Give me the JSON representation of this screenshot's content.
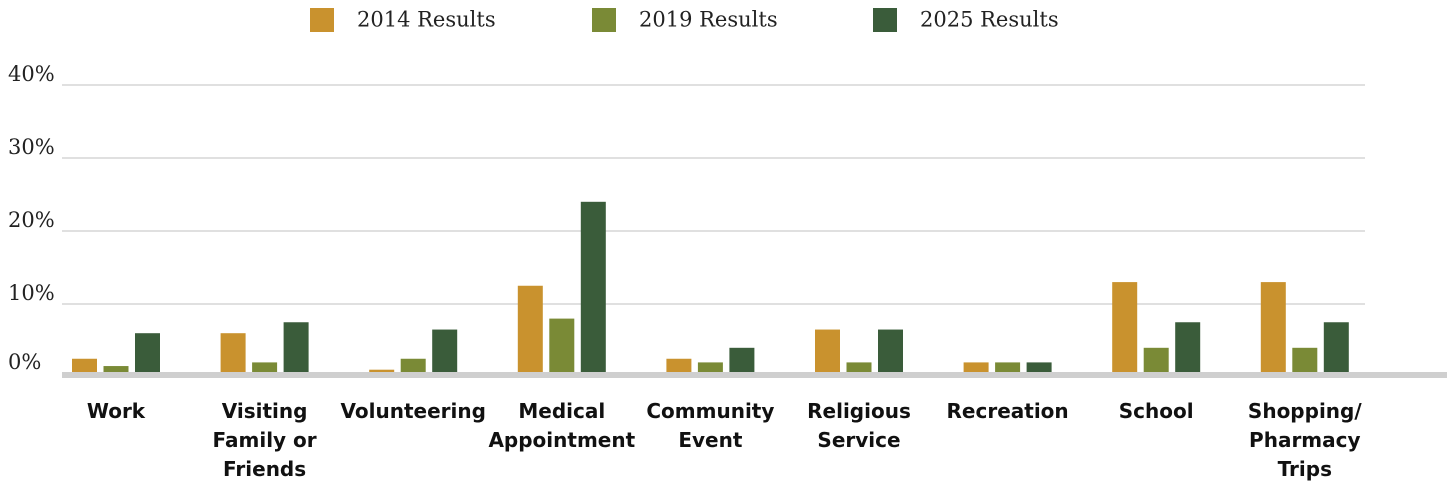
{
  "chart_data": {
    "type": "bar",
    "categories": [
      "Work",
      "Visiting\nFamily or\nFriends",
      "Volunteering",
      "Medical\nAppointment",
      "Community\nEvent",
      "Religious\nService",
      "Recreation",
      "School",
      "Shopping/\nPharmacy\nTrips"
    ],
    "series": [
      {
        "name": "2014 Results",
        "color": "#c9922e",
        "values": [
          2.5,
          6,
          1,
          12.5,
          2.5,
          6.5,
          2,
          13,
          13
        ]
      },
      {
        "name": "2019 Results",
        "color": "#7a8a36",
        "values": [
          1.5,
          2,
          2.5,
          8,
          2,
          2,
          2,
          4,
          4
        ]
      },
      {
        "name": "2025 Results",
        "color": "#3a5c3a",
        "values": [
          6,
          7.5,
          6.5,
          24,
          4,
          6.5,
          2,
          7.5,
          7.5
        ]
      }
    ],
    "ylim": [
      0,
      40
    ],
    "yticks": [
      {
        "value": 0,
        "label": "0%"
      },
      {
        "value": 10,
        "label": "10%"
      },
      {
        "value": 20,
        "label": "20%"
      },
      {
        "value": 30,
        "label": "30%"
      },
      {
        "value": 40,
        "label": "40%"
      }
    ],
    "grid": true,
    "legend": "top"
  }
}
